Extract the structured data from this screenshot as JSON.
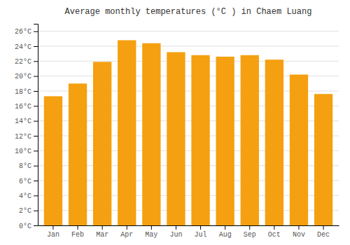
{
  "chart_data": {
    "type": "bar",
    "title": "Average monthly temperatures (°C ) in Chaem Luang",
    "categories": [
      "Jan",
      "Feb",
      "Mar",
      "Apr",
      "May",
      "Jun",
      "Jul",
      "Aug",
      "Sep",
      "Oct",
      "Nov",
      "Dec"
    ],
    "values": [
      17.3,
      19.0,
      21.9,
      24.8,
      24.4,
      23.2,
      22.8,
      22.6,
      22.8,
      22.2,
      20.2,
      17.6
    ],
    "color": "#F5A010",
    "ylim": [
      0,
      27
    ],
    "yticks": [
      {
        "value": 0,
        "label": "0°C"
      },
      {
        "value": 2,
        "label": "2°C"
      },
      {
        "value": 4,
        "label": "4°C"
      },
      {
        "value": 6,
        "label": "6°C"
      },
      {
        "value": 8,
        "label": "8°C"
      },
      {
        "value": 10,
        "label": "10°C"
      },
      {
        "value": 12,
        "label": "12°C"
      },
      {
        "value": 14,
        "label": "14°C"
      },
      {
        "value": 16,
        "label": "16°C"
      },
      {
        "value": 18,
        "label": "18°C"
      },
      {
        "value": 20,
        "label": "20°C"
      },
      {
        "value": 22,
        "label": "22°C"
      },
      {
        "value": 24,
        "label": "24°C"
      },
      {
        "value": 26,
        "label": "26°C"
      }
    ],
    "grid": true
  }
}
